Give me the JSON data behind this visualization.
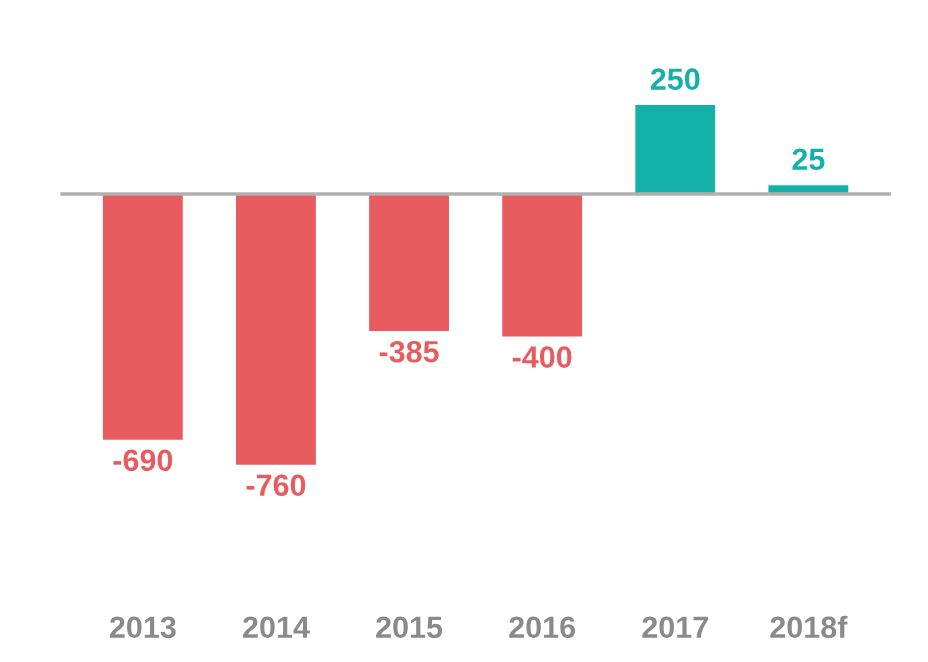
{
  "chart_data": {
    "type": "bar",
    "categories": [
      "2013",
      "2014",
      "2015",
      "2016",
      "2017",
      "2018f"
    ],
    "values": [
      -690,
      -760,
      -385,
      -400,
      250,
      25
    ],
    "colors": [
      "#e85c5f",
      "#e85c5f",
      "#e85c5f",
      "#e85c5f",
      "#14b1a9",
      "#14b1a9"
    ],
    "data_labels": true,
    "grid": false,
    "legend": false
  }
}
